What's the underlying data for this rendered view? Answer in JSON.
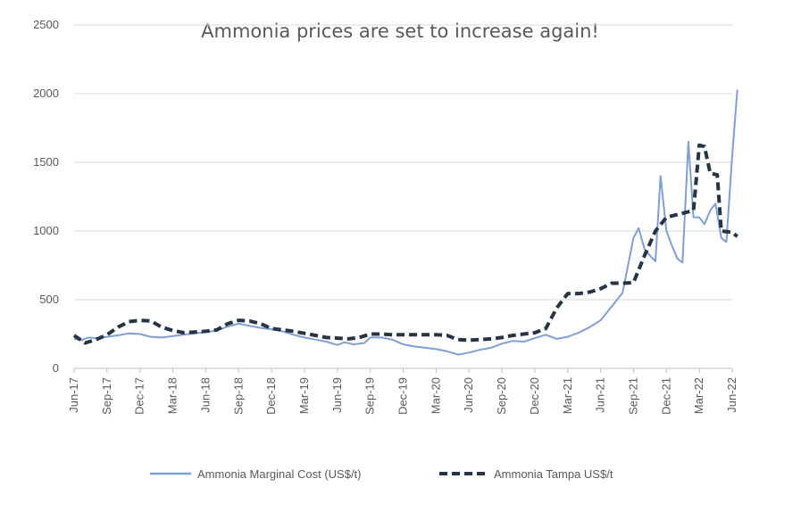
{
  "chart_data": {
    "type": "line",
    "title": "Ammonia prices are set to increase again!",
    "xlabel": "",
    "ylabel": "",
    "ylim": [
      0,
      2500
    ],
    "yticks": [
      0,
      500,
      1000,
      1500,
      2000,
      2500
    ],
    "xlim": [
      "2017-06",
      "2022-06"
    ],
    "xticks": [
      "Jun-17",
      "Sep-17",
      "Dec-17",
      "Mar-18",
      "Jun-18",
      "Sep-18",
      "Dec-18",
      "Mar-19",
      "Jun-19",
      "Sep-19",
      "Dec-19",
      "Mar-20",
      "Jun-20",
      "Sep-20",
      "Dec-20",
      "Mar-21",
      "Jun-21",
      "Sep-21",
      "Dec-21",
      "Mar-22",
      "Jun-22"
    ],
    "grid": "horizontal",
    "legend": "bottom",
    "colors": {
      "marginal": "#7f9fd6",
      "tampa": "#263445"
    },
    "series": [
      {
        "name": "Ammonia Marginal Cost (US$/t)",
        "style": "solid",
        "points": [
          [
            "2017-06-01",
            215
          ],
          [
            "2017-06-20",
            205
          ],
          [
            "2017-07-10",
            225
          ],
          [
            "2017-08-01",
            220
          ],
          [
            "2017-09-01",
            230
          ],
          [
            "2017-10-01",
            240
          ],
          [
            "2017-11-01",
            255
          ],
          [
            "2017-12-01",
            250
          ],
          [
            "2018-01-01",
            230
          ],
          [
            "2018-02-01",
            225
          ],
          [
            "2018-03-01",
            235
          ],
          [
            "2018-04-01",
            245
          ],
          [
            "2018-05-01",
            255
          ],
          [
            "2018-06-01",
            265
          ],
          [
            "2018-07-01",
            275
          ],
          [
            "2018-08-01",
            305
          ],
          [
            "2018-09-01",
            325
          ],
          [
            "2018-10-01",
            310
          ],
          [
            "2018-11-01",
            295
          ],
          [
            "2018-12-01",
            285
          ],
          [
            "2019-01-01",
            270
          ],
          [
            "2019-02-01",
            245
          ],
          [
            "2019-03-01",
            225
          ],
          [
            "2019-04-01",
            210
          ],
          [
            "2019-05-01",
            195
          ],
          [
            "2019-06-01",
            170
          ],
          [
            "2019-06-20",
            190
          ],
          [
            "2019-07-15",
            175
          ],
          [
            "2019-08-15",
            185
          ],
          [
            "2019-09-01",
            225
          ],
          [
            "2019-10-01",
            225
          ],
          [
            "2019-11-01",
            210
          ],
          [
            "2019-12-01",
            175
          ],
          [
            "2020-01-01",
            160
          ],
          [
            "2020-02-01",
            150
          ],
          [
            "2020-03-01",
            140
          ],
          [
            "2020-04-01",
            125
          ],
          [
            "2020-05-01",
            100
          ],
          [
            "2020-06-01",
            115
          ],
          [
            "2020-07-01",
            135
          ],
          [
            "2020-08-01",
            150
          ],
          [
            "2020-09-01",
            180
          ],
          [
            "2020-10-01",
            200
          ],
          [
            "2020-11-01",
            195
          ],
          [
            "2020-12-01",
            220
          ],
          [
            "2021-01-01",
            245
          ],
          [
            "2021-02-01",
            215
          ],
          [
            "2021-03-01",
            230
          ],
          [
            "2021-04-01",
            260
          ],
          [
            "2021-05-01",
            300
          ],
          [
            "2021-06-01",
            350
          ],
          [
            "2021-07-01",
            450
          ],
          [
            "2021-08-01",
            550
          ],
          [
            "2021-09-01",
            950
          ],
          [
            "2021-09-15",
            1020
          ],
          [
            "2021-10-01",
            870
          ],
          [
            "2021-10-20",
            810
          ],
          [
            "2021-11-01",
            780
          ],
          [
            "2021-11-15",
            1400
          ],
          [
            "2021-12-01",
            1000
          ],
          [
            "2021-12-15",
            900
          ],
          [
            "2022-01-01",
            800
          ],
          [
            "2022-01-15",
            770
          ],
          [
            "2022-02-01",
            1650
          ],
          [
            "2022-02-15",
            1100
          ],
          [
            "2022-03-01",
            1100
          ],
          [
            "2022-03-15",
            1050
          ],
          [
            "2022-04-01",
            1150
          ],
          [
            "2022-04-15",
            1200
          ],
          [
            "2022-05-01",
            950
          ],
          [
            "2022-05-15",
            920
          ],
          [
            "2022-06-01",
            1550
          ],
          [
            "2022-06-15",
            2030
          ]
        ]
      },
      {
        "name": "Ammonia Tampa US$/t",
        "style": "dashed",
        "points": [
          [
            "2017-06-01",
            240
          ],
          [
            "2017-07-01",
            185
          ],
          [
            "2017-08-01",
            210
          ],
          [
            "2017-09-01",
            245
          ],
          [
            "2017-10-01",
            300
          ],
          [
            "2017-11-01",
            340
          ],
          [
            "2017-12-01",
            350
          ],
          [
            "2018-01-01",
            345
          ],
          [
            "2018-02-01",
            300
          ],
          [
            "2018-03-01",
            275
          ],
          [
            "2018-04-01",
            260
          ],
          [
            "2018-05-01",
            265
          ],
          [
            "2018-06-01",
            270
          ],
          [
            "2018-07-01",
            280
          ],
          [
            "2018-08-01",
            325
          ],
          [
            "2018-09-01",
            350
          ],
          [
            "2018-10-01",
            345
          ],
          [
            "2018-11-01",
            325
          ],
          [
            "2018-12-01",
            290
          ],
          [
            "2019-01-01",
            280
          ],
          [
            "2019-02-01",
            270
          ],
          [
            "2019-03-01",
            255
          ],
          [
            "2019-04-01",
            240
          ],
          [
            "2019-05-01",
            225
          ],
          [
            "2019-06-01",
            220
          ],
          [
            "2019-07-01",
            215
          ],
          [
            "2019-08-01",
            225
          ],
          [
            "2019-09-01",
            250
          ],
          [
            "2019-10-01",
            250
          ],
          [
            "2019-11-01",
            245
          ],
          [
            "2019-12-01",
            245
          ],
          [
            "2020-01-01",
            245
          ],
          [
            "2020-02-01",
            245
          ],
          [
            "2020-03-01",
            245
          ],
          [
            "2020-04-01",
            240
          ],
          [
            "2020-05-01",
            210
          ],
          [
            "2020-06-01",
            205
          ],
          [
            "2020-07-01",
            210
          ],
          [
            "2020-08-01",
            215
          ],
          [
            "2020-09-01",
            225
          ],
          [
            "2020-10-01",
            240
          ],
          [
            "2020-11-01",
            250
          ],
          [
            "2020-12-01",
            260
          ],
          [
            "2021-01-01",
            290
          ],
          [
            "2021-02-01",
            440
          ],
          [
            "2021-03-01",
            545
          ],
          [
            "2021-04-01",
            545
          ],
          [
            "2021-05-01",
            555
          ],
          [
            "2021-06-01",
            580
          ],
          [
            "2021-07-01",
            620
          ],
          [
            "2021-08-01",
            620
          ],
          [
            "2021-09-01",
            625
          ],
          [
            "2021-10-01",
            820
          ],
          [
            "2021-11-01",
            1000
          ],
          [
            "2021-12-01",
            1100
          ],
          [
            "2022-01-01",
            1120
          ],
          [
            "2022-02-01",
            1140
          ],
          [
            "2022-02-15",
            1150
          ],
          [
            "2022-03-01",
            1625
          ],
          [
            "2022-03-15",
            1615
          ],
          [
            "2022-04-01",
            1420
          ],
          [
            "2022-04-20",
            1410
          ],
          [
            "2022-05-01",
            1000
          ],
          [
            "2022-06-01",
            990
          ],
          [
            "2022-06-15",
            960
          ]
        ]
      }
    ]
  }
}
